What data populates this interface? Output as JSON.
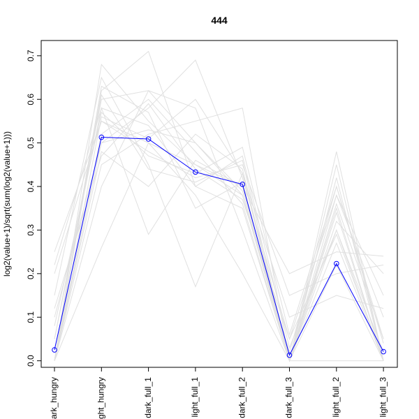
{
  "chart_data": {
    "type": "line",
    "title": "444",
    "xlabel": "",
    "ylabel": "log2(value+1)/sqrt(sum(log2(value+1)))",
    "categories": [
      "dark_hungry",
      "light_hungry",
      "dark_full_1",
      "light_full_1",
      "dark_full_2",
      "dark_full_3",
      "light_full_2",
      "light_full_3"
    ],
    "ylim": [
      -0.015,
      0.735
    ],
    "yticks": [
      0.0,
      0.1,
      0.2,
      0.3,
      0.4,
      0.5,
      0.6,
      0.7
    ],
    "ytick_labels": [
      "0.0",
      "0.1",
      "0.2",
      "0.3",
      "0.4",
      "0.5",
      "0.6",
      "0.7"
    ],
    "grid": false,
    "legend": "none",
    "highlight_series": {
      "values": [
        0.025,
        0.513,
        0.509,
        0.433,
        0.405,
        0.013,
        0.223,
        0.021
      ],
      "color": "#0000ff"
    },
    "background_series": {
      "color": "#e0e0e0",
      "lines": [
        [
          0.0,
          0.68,
          0.55,
          0.45,
          0.4,
          0.0,
          0.3,
          0.0
        ],
        [
          0.05,
          0.6,
          0.62,
          0.5,
          0.38,
          0.02,
          0.4,
          0.05
        ],
        [
          0.25,
          0.55,
          0.48,
          0.42,
          0.45,
          0.15,
          0.2,
          0.22
        ],
        [
          0.0,
          0.62,
          0.71,
          0.4,
          0.35,
          0.0,
          0.35,
          0.0
        ],
        [
          0.1,
          0.5,
          0.58,
          0.69,
          0.42,
          0.05,
          0.38,
          0.1
        ],
        [
          0.0,
          0.45,
          0.52,
          0.55,
          0.58,
          0.0,
          0.48,
          0.0
        ],
        [
          0.22,
          0.58,
          0.29,
          0.46,
          0.4,
          0.2,
          0.25,
          0.24
        ],
        [
          0.0,
          0.26,
          0.5,
          0.38,
          0.2,
          0.0,
          0.0,
          0.0
        ],
        [
          0.15,
          0.65,
          0.45,
          0.17,
          0.43,
          0.1,
          0.15,
          0.12
        ],
        [
          0.0,
          0.52,
          0.6,
          0.48,
          0.36,
          0.0,
          0.42,
          0.0
        ],
        [
          0.05,
          0.58,
          0.54,
          0.4,
          0.47,
          0.03,
          0.3,
          0.02
        ],
        [
          0.0,
          0.48,
          0.4,
          0.52,
          0.44,
          0.0,
          0.36,
          0.05
        ],
        [
          0.2,
          0.55,
          0.5,
          0.45,
          0.38,
          0.0,
          0.32,
          0.2
        ],
        [
          0.0,
          0.63,
          0.57,
          0.35,
          0.41,
          0.0,
          0.27,
          0.0
        ],
        [
          0.0,
          0.4,
          0.62,
          0.58,
          0.3,
          0.0,
          0.22,
          0.0
        ],
        [
          0.08,
          0.57,
          0.47,
          0.43,
          0.49,
          0.06,
          0.4,
          0.04
        ],
        [
          0.0,
          0.5,
          0.53,
          0.5,
          0.39,
          0.0,
          0.34,
          0.0
        ],
        [
          0.0,
          0.61,
          0.44,
          0.41,
          0.46,
          0.0,
          0.38,
          0.15
        ],
        [
          0.12,
          0.47,
          0.59,
          0.44,
          0.37,
          0.05,
          0.29,
          0.0
        ],
        [
          0.0,
          0.56,
          0.51,
          0.6,
          0.43,
          0.0,
          0.45,
          0.0
        ]
      ]
    }
  }
}
